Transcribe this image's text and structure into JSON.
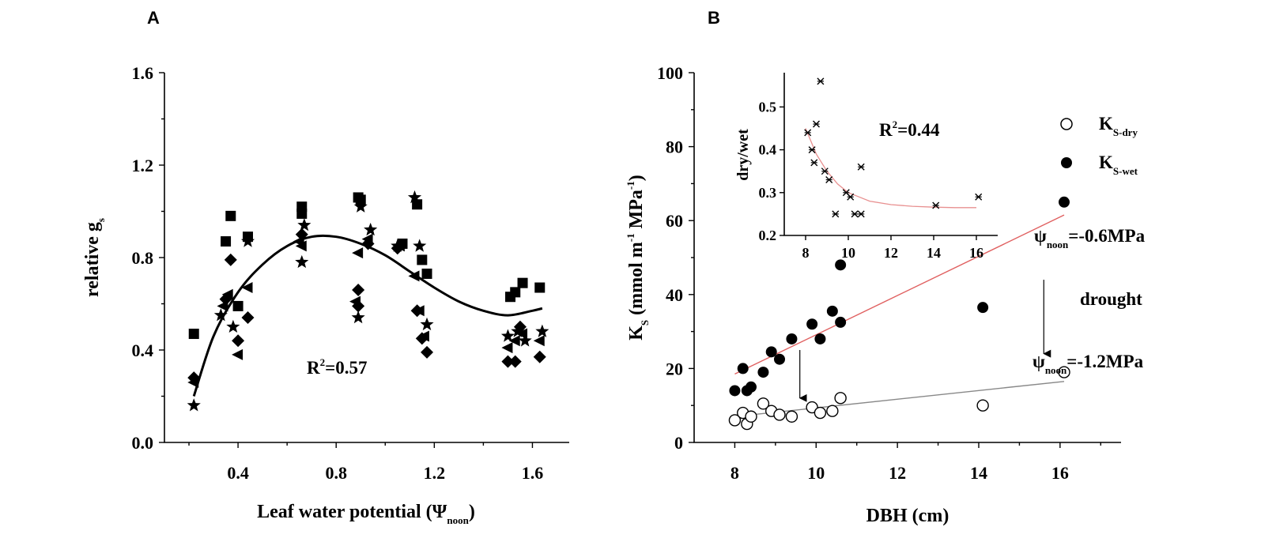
{
  "panels": {
    "a": {
      "label": "A"
    },
    "b": {
      "label": "B"
    }
  },
  "chart_data": [
    {
      "type": "scatter",
      "panel": "A",
      "title": "",
      "xlabel": "Leaf water potential (Ψnoon)",
      "xlabel_main": "Leaf water potential (Ψ",
      "xlabel_sub": "noon",
      "xlabel_close": ")",
      "ylabel": "relative gs",
      "ylabel_main": "relative g",
      "ylabel_sub": "s",
      "xlim": [
        0.1,
        1.75
      ],
      "ylim": [
        0.0,
        1.6
      ],
      "xticks": [
        0.4,
        0.8,
        1.2,
        1.6
      ],
      "xtick_labels": [
        "0.4",
        "0.8",
        "1.2",
        "1.6"
      ],
      "yticks": [
        0.0,
        0.4,
        0.8,
        1.2,
        1.6
      ],
      "ytick_labels": [
        "0.0",
        "0.4",
        "0.8",
        "1.2",
        "1.6"
      ],
      "annotation": {
        "text": "R2=0.57",
        "main": "R",
        "sup": "2",
        "rest": "=0.57"
      },
      "series": [
        {
          "name": "square",
          "marker": "square",
          "points": [
            [
              0.22,
              0.47
            ],
            [
              0.35,
              0.87
            ],
            [
              0.37,
              0.98
            ],
            [
              0.4,
              0.59
            ],
            [
              0.44,
              0.89
            ],
            [
              0.66,
              0.99
            ],
            [
              0.66,
              1.02
            ],
            [
              0.89,
              1.06
            ],
            [
              0.9,
              1.05
            ],
            [
              1.07,
              0.86
            ],
            [
              1.13,
              1.03
            ],
            [
              1.15,
              0.79
            ],
            [
              1.17,
              0.73
            ],
            [
              1.51,
              0.63
            ],
            [
              1.53,
              0.65
            ],
            [
              1.56,
              0.69
            ],
            [
              1.63,
              0.67
            ]
          ]
        },
        {
          "name": "diamond",
          "marker": "diamond",
          "points": [
            [
              0.22,
              0.28
            ],
            [
              0.35,
              0.62
            ],
            [
              0.37,
              0.79
            ],
            [
              0.4,
              0.44
            ],
            [
              0.44,
              0.54
            ],
            [
              0.66,
              0.9
            ],
            [
              0.89,
              0.66
            ],
            [
              0.89,
              0.59
            ],
            [
              0.93,
              0.86
            ],
            [
              1.05,
              0.84
            ],
            [
              1.13,
              0.57
            ],
            [
              1.15,
              0.45
            ],
            [
              1.17,
              0.39
            ],
            [
              1.5,
              0.35
            ],
            [
              1.53,
              0.35
            ],
            [
              1.55,
              0.5
            ],
            [
              1.63,
              0.37
            ]
          ]
        },
        {
          "name": "left-triangle",
          "marker": "triangle-left",
          "points": [
            [
              0.22,
              0.26
            ],
            [
              0.34,
              0.59
            ],
            [
              0.36,
              0.64
            ],
            [
              0.4,
              0.38
            ],
            [
              0.44,
              0.67
            ],
            [
              0.65,
              0.87
            ],
            [
              0.66,
              0.85
            ],
            [
              0.88,
              0.61
            ],
            [
              0.89,
              0.82
            ],
            [
              0.93,
              0.88
            ],
            [
              1.06,
              0.85
            ],
            [
              1.12,
              0.72
            ],
            [
              1.14,
              0.57
            ],
            [
              1.16,
              0.46
            ],
            [
              1.5,
              0.41
            ],
            [
              1.53,
              0.44
            ],
            [
              1.56,
              0.47
            ],
            [
              1.63,
              0.44
            ]
          ]
        },
        {
          "name": "star",
          "marker": "star",
          "points": [
            [
              0.22,
              0.16
            ],
            [
              0.33,
              0.55
            ],
            [
              0.38,
              0.5
            ],
            [
              0.44,
              0.87
            ],
            [
              0.66,
              0.78
            ],
            [
              0.67,
              0.94
            ],
            [
              0.89,
              0.54
            ],
            [
              0.9,
              1.02
            ],
            [
              0.94,
              0.92
            ],
            [
              1.05,
              0.85
            ],
            [
              1.12,
              1.06
            ],
            [
              1.14,
              0.85
            ],
            [
              1.17,
              0.51
            ],
            [
              1.5,
              0.46
            ],
            [
              1.54,
              0.48
            ],
            [
              1.57,
              0.44
            ],
            [
              1.64,
              0.48
            ]
          ]
        }
      ],
      "fit": {
        "type": "cubic",
        "x_range": [
          0.22,
          1.64
        ],
        "points": [
          [
            0.22,
            0.2
          ],
          [
            0.3,
            0.46
          ],
          [
            0.4,
            0.65
          ],
          [
            0.5,
            0.77
          ],
          [
            0.6,
            0.85
          ],
          [
            0.7,
            0.89
          ],
          [
            0.8,
            0.89
          ],
          [
            0.9,
            0.86
          ],
          [
            1.0,
            0.81
          ],
          [
            1.1,
            0.74
          ],
          [
            1.2,
            0.67
          ],
          [
            1.3,
            0.61
          ],
          [
            1.4,
            0.57
          ],
          [
            1.5,
            0.55
          ],
          [
            1.6,
            0.57
          ],
          [
            1.64,
            0.58
          ]
        ]
      }
    },
    {
      "type": "scatter",
      "panel": "B",
      "title": "",
      "xlabel": "DBH (cm)",
      "ylabel": "KS (mmol m-1 MPa-1)",
      "ylabel_main": "K",
      "ylabel_sub": "S",
      "ylabel_mid": " (mmol m",
      "ylabel_sup1": "-1",
      "ylabel_mid2": " MPa",
      "ylabel_sup2": "-1",
      "ylabel_close": ")",
      "xlim": [
        7,
        17.5
      ],
      "ylim": [
        0,
        100
      ],
      "xticks": [
        8,
        10,
        12,
        14,
        16
      ],
      "xtick_labels": [
        "8",
        "10",
        "12",
        "14",
        "16"
      ],
      "yticks": [
        0,
        20,
        40,
        60,
        80,
        100
      ],
      "ytick_labels": [
        "0",
        "20",
        "40",
        "60",
        "80",
        "100"
      ],
      "legend": [
        {
          "label": "KS-dry",
          "main": "K",
          "sub": "S-dry",
          "marker": "open-circle"
        },
        {
          "label": "KS-wet",
          "main": "K",
          "sub": "S-wet",
          "marker": "filled-circle"
        }
      ],
      "annotations": {
        "wet_potential": {
          "main": "ψ",
          "sub": "noon",
          "rest": "=-0.6MPa"
        },
        "drought": "drought",
        "dry_potential": {
          "main": "ψ",
          "sub": "noon",
          "rest": "=-1.2MPa"
        }
      },
      "series": [
        {
          "name": "KS-dry",
          "marker": "open-circle",
          "points": [
            [
              8.0,
              6
            ],
            [
              8.2,
              8
            ],
            [
              8.3,
              5
            ],
            [
              8.4,
              7
            ],
            [
              8.7,
              10.5
            ],
            [
              8.9,
              8.5
            ],
            [
              9.1,
              7.5
            ],
            [
              9.4,
              7
            ],
            [
              9.9,
              9.5
            ],
            [
              10.1,
              8
            ],
            [
              10.4,
              8.5
            ],
            [
              10.6,
              12
            ],
            [
              14.1,
              10
            ],
            [
              16.1,
              19
            ]
          ]
        },
        {
          "name": "KS-wet",
          "marker": "filled-circle",
          "points": [
            [
              8.0,
              14
            ],
            [
              8.2,
              20
            ],
            [
              8.3,
              14
            ],
            [
              8.4,
              15
            ],
            [
              8.7,
              19
            ],
            [
              8.9,
              24.5
            ],
            [
              9.1,
              22.5
            ],
            [
              9.4,
              28
            ],
            [
              9.9,
              32
            ],
            [
              10.1,
              28
            ],
            [
              10.4,
              35.5
            ],
            [
              10.6,
              32.5
            ],
            [
              10.6,
              48
            ],
            [
              14.1,
              36.5
            ],
            [
              16.1,
              65
            ]
          ]
        }
      ],
      "fits": [
        {
          "series": "KS-wet",
          "color": "#e06060",
          "from": [
            8.0,
            18.5
          ],
          "to": [
            16.1,
            61.5
          ]
        },
        {
          "series": "KS-dry",
          "color": "#888888",
          "from": [
            8.0,
            7.0
          ],
          "to": [
            16.1,
            16.5
          ]
        }
      ],
      "arrows": [
        {
          "from": [
            9.6,
            25
          ],
          "to": [
            9.6,
            12
          ]
        },
        {
          "from": [
            15.6,
            44
          ],
          "to": [
            15.6,
            24
          ]
        }
      ],
      "inset": {
        "type": "scatter",
        "ylabel": "dry/wet",
        "xlim": [
          7,
          17
        ],
        "ylim": [
          0.2,
          0.58
        ],
        "xticks": [
          8,
          10,
          12,
          14,
          16
        ],
        "xtick_labels": [
          "8",
          "10",
          "12",
          "14",
          "16"
        ],
        "yticks": [
          0.2,
          0.3,
          0.4,
          0.5
        ],
        "ytick_labels": [
          "0.2",
          "0.3",
          "0.4",
          "0.5"
        ],
        "annotation": {
          "text": "R2=0.44",
          "main": "R",
          "sup": "2",
          "rest": "=0.44"
        },
        "points": [
          [
            8.1,
            0.44
          ],
          [
            8.3,
            0.4
          ],
          [
            8.4,
            0.37
          ],
          [
            8.5,
            0.46
          ],
          [
            8.7,
            0.56
          ],
          [
            8.9,
            0.35
          ],
          [
            9.1,
            0.33
          ],
          [
            9.4,
            0.25
          ],
          [
            9.9,
            0.3
          ],
          [
            10.1,
            0.29
          ],
          [
            10.3,
            0.25
          ],
          [
            10.6,
            0.25
          ],
          [
            10.6,
            0.36
          ],
          [
            14.1,
            0.27
          ],
          [
            16.1,
            0.29
          ]
        ],
        "fit_color": "#e89090",
        "fit": [
          [
            8.0,
            0.45
          ],
          [
            8.5,
            0.39
          ],
          [
            9.0,
            0.35
          ],
          [
            9.5,
            0.32
          ],
          [
            10.0,
            0.3
          ],
          [
            10.5,
            0.29
          ],
          [
            11.0,
            0.28
          ],
          [
            12.0,
            0.272
          ],
          [
            13.0,
            0.268
          ],
          [
            14.0,
            0.266
          ],
          [
            15.0,
            0.265
          ],
          [
            16.0,
            0.265
          ]
        ]
      }
    }
  ]
}
